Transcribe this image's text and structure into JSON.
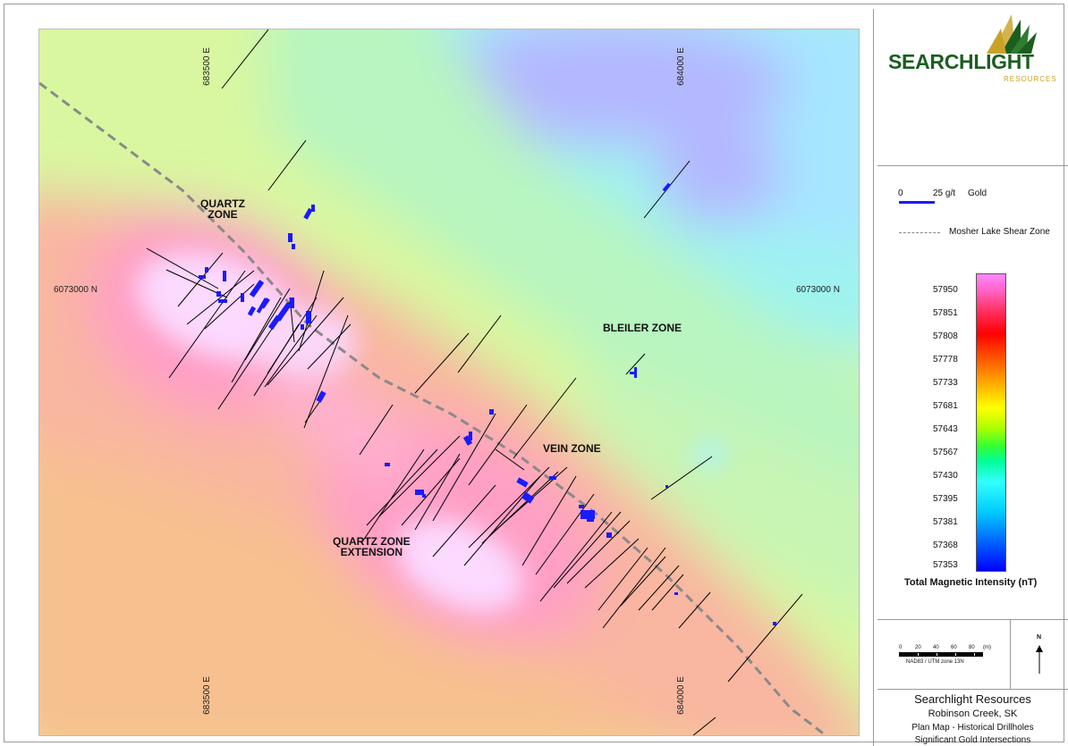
{
  "map": {
    "grid_labels": {
      "easting_a": "683500 E",
      "easting_b": "684000 E",
      "northing": "6073000 N"
    },
    "zones": {
      "quartz_zone": [
        "QUARTZ",
        "ZONE"
      ],
      "bleiler_zone": "BLEILER ZONE",
      "vein_zone": "VEIN ZONE",
      "quartz_zone_extension": [
        "QUARTZ ZONE",
        "EXTENSION"
      ]
    },
    "colors": {
      "drillhole": "#000000",
      "gold_bar": "#1a1aff",
      "shear_zone": "#8a8a8a"
    }
  },
  "legend": {
    "logo": {
      "name": "SEARCHLIGHT",
      "sub": "RESOURCES",
      "icon": "sunburst-logo-icon"
    },
    "gold_scale": {
      "zero": "0",
      "value": "25 g/t",
      "label": "Gold"
    },
    "shear_zone": "Mosher Lake Shear Zone",
    "colorbar_values": [
      "57950",
      "57851",
      "57808",
      "57778",
      "57733",
      "57681",
      "57643",
      "57567",
      "57430",
      "57395",
      "57381",
      "57368",
      "57353"
    ],
    "colorbar_title": "Total Magnetic Intensity (nT)"
  },
  "scale": {
    "ticks": [
      "0",
      "20",
      "40",
      "60",
      "80",
      "(m)"
    ],
    "projection": "NAD83 / UTM zone 13N",
    "north": "N"
  },
  "title_block": {
    "company": "Searchlight Resources",
    "location": "Robinson Creek, SK",
    "line1": "Plan Map - Historical Drillholes",
    "line2": "Significant Gold Intersections"
  }
}
